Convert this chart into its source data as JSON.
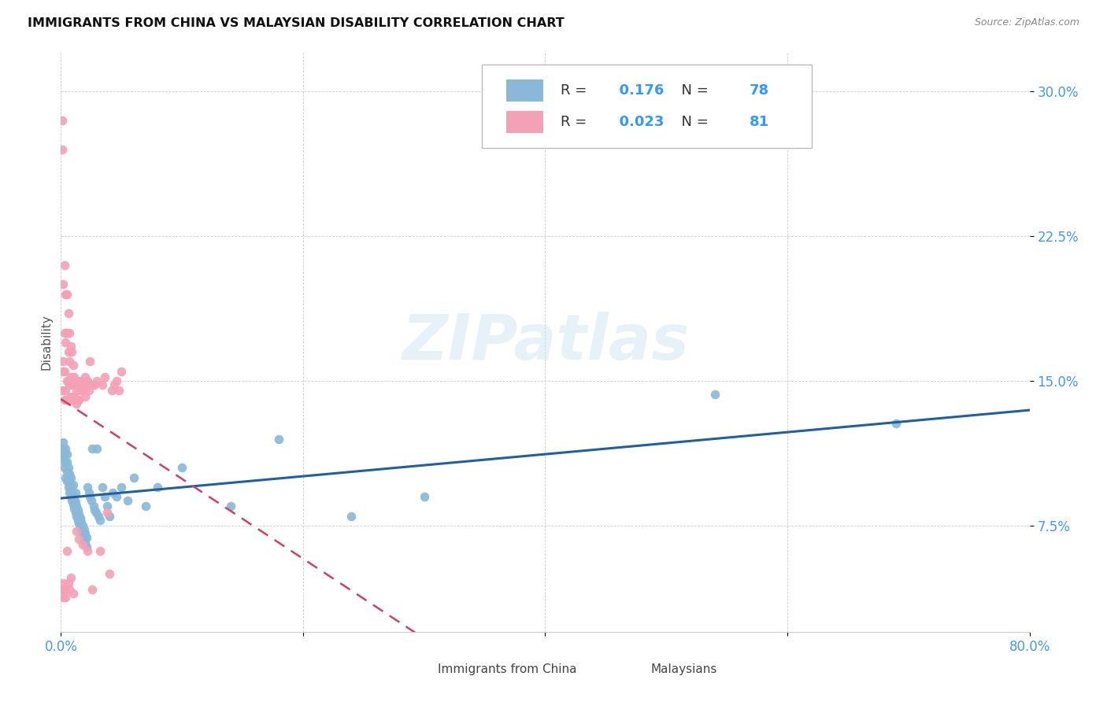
{
  "title": "IMMIGRANTS FROM CHINA VS MALAYSIAN DISABILITY CORRELATION CHART",
  "source": "Source: ZipAtlas.com",
  "ylabel": "Disability",
  "xlim": [
    0.0,
    0.8
  ],
  "ylim": [
    0.02,
    0.32
  ],
  "yticks": [
    0.075,
    0.15,
    0.225,
    0.3
  ],
  "ytick_labels": [
    "7.5%",
    "15.0%",
    "22.5%",
    "30.0%"
  ],
  "series1_label": "Immigrants from China",
  "series1_color": "#89b8d8",
  "series1_R": "0.176",
  "series1_N": "78",
  "series2_label": "Malaysians",
  "series2_color": "#f4a0b5",
  "series2_R": "0.023",
  "series2_N": "81",
  "line1_color": "#2060a0",
  "line2_color": "#d04060",
  "watermark": "ZIPatlas",
  "background_color": "#ffffff",
  "series1_x": [
    0.001,
    0.002,
    0.002,
    0.003,
    0.003,
    0.003,
    0.004,
    0.004,
    0.005,
    0.005,
    0.005,
    0.005,
    0.006,
    0.006,
    0.006,
    0.007,
    0.007,
    0.007,
    0.008,
    0.008,
    0.008,
    0.009,
    0.009,
    0.01,
    0.01,
    0.01,
    0.011,
    0.011,
    0.012,
    0.012,
    0.012,
    0.013,
    0.013,
    0.014,
    0.014,
    0.015,
    0.015,
    0.016,
    0.016,
    0.017,
    0.017,
    0.018,
    0.018,
    0.019,
    0.019,
    0.02,
    0.02,
    0.021,
    0.021,
    0.022,
    0.023,
    0.024,
    0.025,
    0.026,
    0.027,
    0.028,
    0.029,
    0.03,
    0.031,
    0.032,
    0.034,
    0.036,
    0.038,
    0.04,
    0.043,
    0.046,
    0.05,
    0.055,
    0.06,
    0.07,
    0.08,
    0.1,
    0.14,
    0.18,
    0.24,
    0.3,
    0.54,
    0.69
  ],
  "series1_y": [
    0.115,
    0.11,
    0.118,
    0.108,
    0.112,
    0.105,
    0.1,
    0.115,
    0.098,
    0.103,
    0.108,
    0.112,
    0.095,
    0.1,
    0.105,
    0.092,
    0.097,
    0.102,
    0.09,
    0.095,
    0.1,
    0.088,
    0.093,
    0.086,
    0.091,
    0.096,
    0.084,
    0.089,
    0.082,
    0.087,
    0.092,
    0.08,
    0.085,
    0.078,
    0.083,
    0.076,
    0.081,
    0.074,
    0.079,
    0.072,
    0.077,
    0.07,
    0.075,
    0.068,
    0.073,
    0.066,
    0.071,
    0.064,
    0.069,
    0.095,
    0.092,
    0.09,
    0.088,
    0.115,
    0.085,
    0.083,
    0.082,
    0.115,
    0.08,
    0.078,
    0.095,
    0.09,
    0.085,
    0.08,
    0.092,
    0.09,
    0.095,
    0.088,
    0.1,
    0.085,
    0.095,
    0.105,
    0.085,
    0.12,
    0.08,
    0.09,
    0.143,
    0.128
  ],
  "series2_x": [
    0.001,
    0.001,
    0.001,
    0.002,
    0.002,
    0.002,
    0.003,
    0.003,
    0.003,
    0.003,
    0.004,
    0.004,
    0.004,
    0.005,
    0.005,
    0.005,
    0.005,
    0.006,
    0.006,
    0.006,
    0.006,
    0.007,
    0.007,
    0.007,
    0.008,
    0.008,
    0.008,
    0.009,
    0.009,
    0.009,
    0.01,
    0.01,
    0.01,
    0.011,
    0.011,
    0.012,
    0.012,
    0.013,
    0.013,
    0.014,
    0.014,
    0.015,
    0.015,
    0.016,
    0.017,
    0.018,
    0.019,
    0.02,
    0.02,
    0.021,
    0.022,
    0.023,
    0.024,
    0.025,
    0.026,
    0.028,
    0.03,
    0.032,
    0.034,
    0.036,
    0.038,
    0.04,
    0.042,
    0.044,
    0.046,
    0.048,
    0.05,
    0.022,
    0.018,
    0.015,
    0.013,
    0.01,
    0.008,
    0.007,
    0.006,
    0.005,
    0.004,
    0.003,
    0.002,
    0.002,
    0.001
  ],
  "series2_y": [
    0.27,
    0.285,
    0.145,
    0.16,
    0.2,
    0.155,
    0.21,
    0.175,
    0.155,
    0.14,
    0.195,
    0.17,
    0.145,
    0.195,
    0.175,
    0.15,
    0.14,
    0.185,
    0.165,
    0.15,
    0.14,
    0.175,
    0.16,
    0.148,
    0.168,
    0.152,
    0.142,
    0.165,
    0.15,
    0.14,
    0.158,
    0.148,
    0.14,
    0.152,
    0.142,
    0.148,
    0.14,
    0.145,
    0.138,
    0.15,
    0.14,
    0.148,
    0.14,
    0.145,
    0.15,
    0.145,
    0.148,
    0.152,
    0.142,
    0.148,
    0.15,
    0.145,
    0.16,
    0.148,
    0.042,
    0.148,
    0.15,
    0.062,
    0.148,
    0.152,
    0.082,
    0.05,
    0.145,
    0.148,
    0.15,
    0.145,
    0.155,
    0.062,
    0.065,
    0.068,
    0.072,
    0.04,
    0.048,
    0.042,
    0.045,
    0.062,
    0.038,
    0.042,
    0.038,
    0.045,
    0.042
  ]
}
